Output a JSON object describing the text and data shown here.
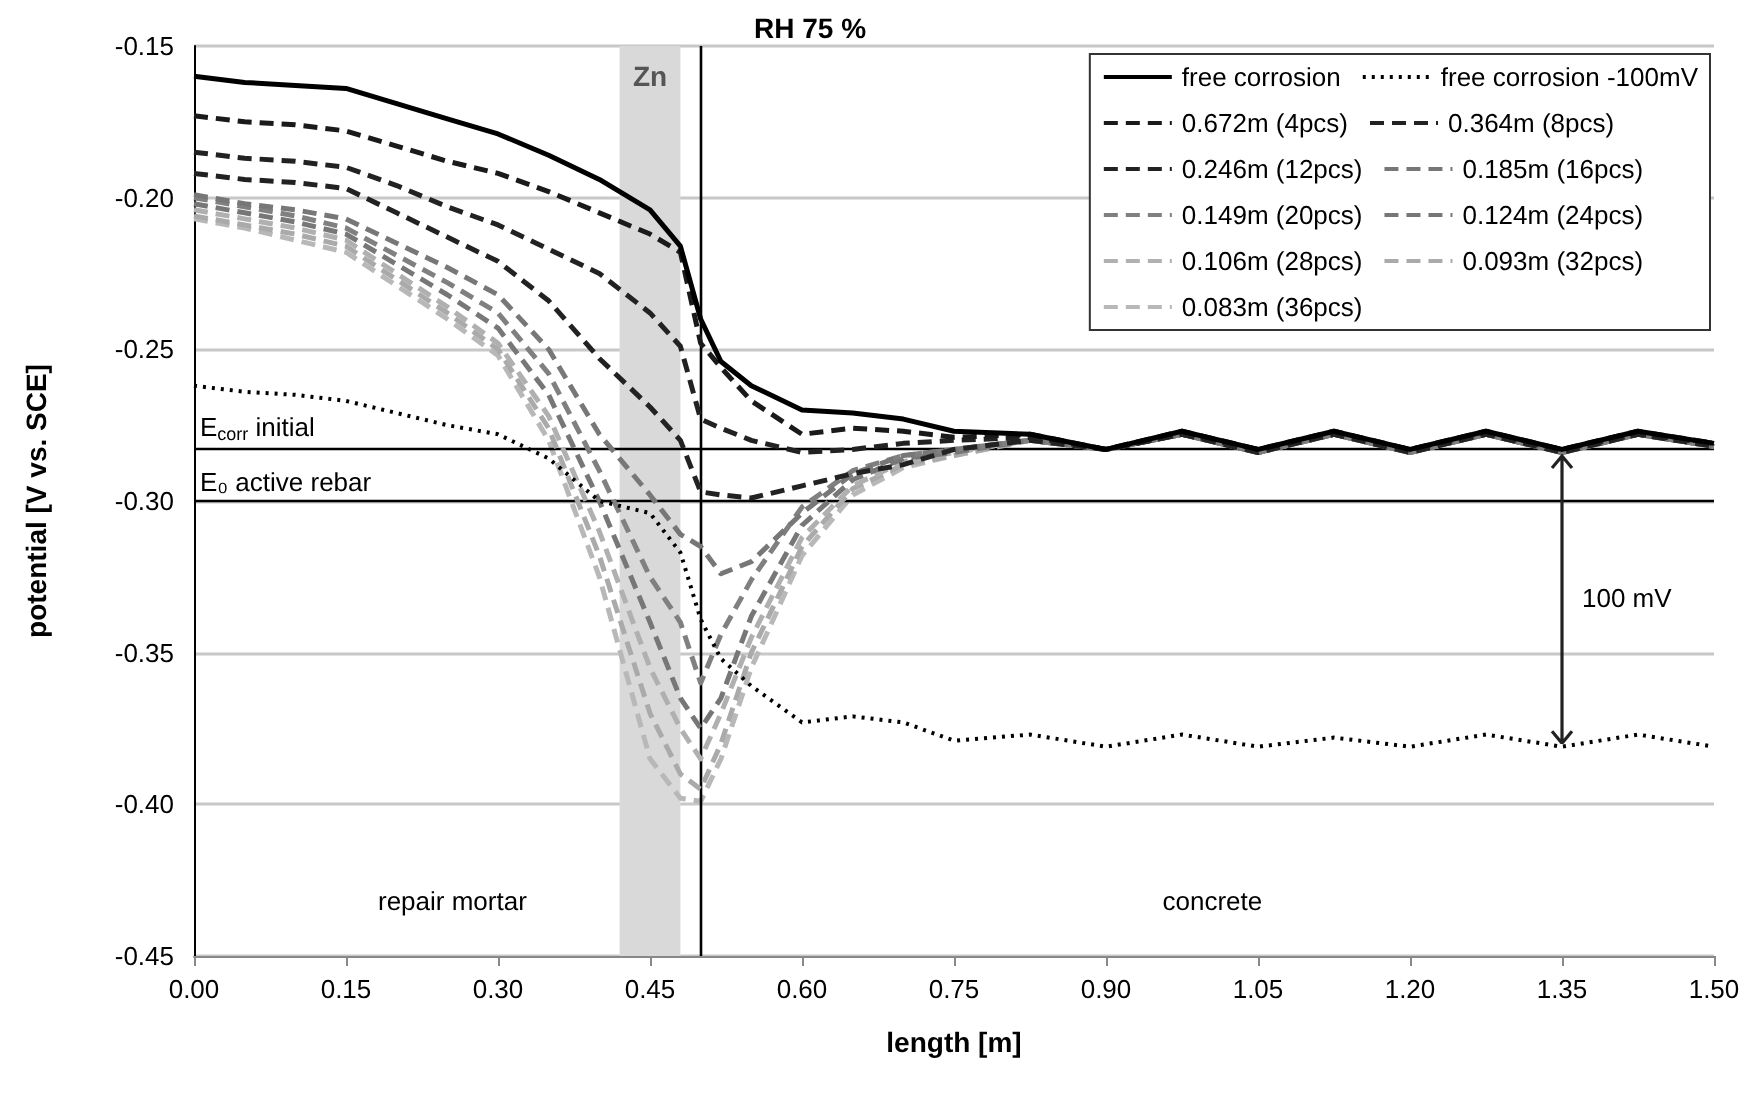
{
  "chart_data": {
    "type": "line",
    "title": "RH 75 %",
    "xlabel": "length [m]",
    "ylabel": "potential [V vs. SCE]",
    "x": [
      0,
      0.05,
      0.1,
      0.15,
      0.2,
      0.25,
      0.3,
      0.35,
      0.4,
      0.45,
      0.48,
      0.5,
      0.52,
      0.55,
      0.6,
      0.65,
      0.7,
      0.75,
      0.825,
      0.9,
      0.975,
      1.05,
      1.125,
      1.2,
      1.275,
      1.35,
      1.425,
      1.5
    ],
    "series": [
      {
        "name": "free corrosion",
        "color": "#000000",
        "line_style": "solid",
        "values": [
          -0.16,
          -0.162,
          -0.163,
          -0.164,
          -0.169,
          -0.174,
          -0.179,
          -0.186,
          -0.194,
          -0.204,
          -0.216,
          -0.24,
          -0.254,
          -0.262,
          -0.27,
          -0.271,
          -0.273,
          -0.277,
          -0.278,
          -0.283,
          -0.277,
          -0.283,
          -0.277,
          -0.283,
          -0.277,
          -0.283,
          -0.277,
          -0.281
        ]
      },
      {
        "name": "free corrosion -100mV",
        "color": "#000000",
        "line_style": "dotted",
        "values": [
          -0.262,
          -0.264,
          -0.265,
          -0.267,
          -0.271,
          -0.275,
          -0.278,
          -0.286,
          -0.3,
          -0.304,
          -0.317,
          -0.339,
          -0.352,
          -0.361,
          -0.373,
          -0.371,
          -0.373,
          -0.379,
          -0.377,
          -0.381,
          -0.377,
          -0.381,
          -0.378,
          -0.381,
          -0.377,
          -0.381,
          -0.377,
          -0.381
        ]
      },
      {
        "name": "0.672m (4pcs)",
        "color": "#1a1a1a",
        "line_style": "dashed",
        "values": [
          -0.173,
          -0.175,
          -0.176,
          -0.178,
          -0.183,
          -0.188,
          -0.192,
          -0.198,
          -0.205,
          -0.212,
          -0.218,
          -0.248,
          -0.256,
          -0.267,
          -0.278,
          -0.276,
          -0.277,
          -0.279,
          -0.278,
          -0.283,
          -0.277,
          -0.283,
          -0.277,
          -0.283,
          -0.277,
          -0.283,
          -0.277,
          -0.281
        ]
      },
      {
        "name": "0.364m (8pcs)",
        "color": "#222222",
        "line_style": "dashed",
        "values": [
          -0.185,
          -0.187,
          -0.188,
          -0.19,
          -0.196,
          -0.203,
          -0.209,
          -0.217,
          -0.225,
          -0.238,
          -0.249,
          -0.273,
          -0.276,
          -0.28,
          -0.284,
          -0.283,
          -0.281,
          -0.28,
          -0.279,
          -0.283,
          -0.278,
          -0.283,
          -0.278,
          -0.283,
          -0.278,
          -0.283,
          -0.278,
          -0.281
        ]
      },
      {
        "name": "0.246m (12pcs)",
        "color": "#222222",
        "line_style": "dashed",
        "values": [
          -0.192,
          -0.194,
          -0.195,
          -0.197,
          -0.205,
          -0.213,
          -0.221,
          -0.234,
          -0.253,
          -0.269,
          -0.28,
          -0.297,
          -0.298,
          -0.299,
          -0.295,
          -0.291,
          -0.288,
          -0.283,
          -0.28,
          -0.283,
          -0.278,
          -0.284,
          -0.278,
          -0.284,
          -0.278,
          -0.284,
          -0.278,
          -0.282
        ]
      },
      {
        "name": "0.185m (16pcs)",
        "color": "#777777",
        "line_style": "dashed",
        "values": [
          -0.199,
          -0.202,
          -0.204,
          -0.207,
          -0.215,
          -0.223,
          -0.232,
          -0.25,
          -0.278,
          -0.298,
          -0.311,
          -0.315,
          -0.324,
          -0.32,
          -0.304,
          -0.291,
          -0.285,
          -0.283,
          -0.28,
          -0.283,
          -0.278,
          -0.284,
          -0.278,
          -0.284,
          -0.278,
          -0.284,
          -0.278,
          -0.282
        ]
      },
      {
        "name": "0.149m (20pcs)",
        "color": "#808080",
        "line_style": "dashed",
        "values": [
          -0.2,
          -0.203,
          -0.206,
          -0.21,
          -0.219,
          -0.228,
          -0.238,
          -0.258,
          -0.29,
          -0.325,
          -0.34,
          -0.36,
          -0.344,
          -0.326,
          -0.302,
          -0.29,
          -0.285,
          -0.283,
          -0.28,
          -0.283,
          -0.278,
          -0.284,
          -0.278,
          -0.284,
          -0.278,
          -0.284,
          -0.278,
          -0.282
        ]
      },
      {
        "name": "0.124m (24pcs)",
        "color": "#777777",
        "line_style": "dashed",
        "values": [
          -0.202,
          -0.205,
          -0.208,
          -0.212,
          -0.222,
          -0.232,
          -0.243,
          -0.265,
          -0.3,
          -0.34,
          -0.365,
          -0.375,
          -0.365,
          -0.338,
          -0.308,
          -0.293,
          -0.286,
          -0.284,
          -0.28,
          -0.283,
          -0.278,
          -0.284,
          -0.278,
          -0.284,
          -0.278,
          -0.284,
          -0.278,
          -0.282
        ]
      },
      {
        "name": "0.106m (28pcs)",
        "color": "#b0b0b0",
        "line_style": "dashed",
        "values": [
          -0.204,
          -0.207,
          -0.21,
          -0.214,
          -0.225,
          -0.236,
          -0.248,
          -0.272,
          -0.31,
          -0.355,
          -0.375,
          -0.385,
          -0.37,
          -0.345,
          -0.312,
          -0.295,
          -0.287,
          -0.284,
          -0.28,
          -0.283,
          -0.278,
          -0.284,
          -0.278,
          -0.284,
          -0.278,
          -0.284,
          -0.278,
          -0.282
        ]
      },
      {
        "name": "0.093m (32pcs)",
        "color": "#aaaaaa",
        "line_style": "dashed",
        "values": [
          -0.206,
          -0.209,
          -0.212,
          -0.216,
          -0.227,
          -0.238,
          -0.25,
          -0.276,
          -0.318,
          -0.37,
          -0.39,
          -0.395,
          -0.38,
          -0.35,
          -0.315,
          -0.296,
          -0.288,
          -0.285,
          -0.28,
          -0.283,
          -0.278,
          -0.284,
          -0.278,
          -0.284,
          -0.278,
          -0.284,
          -0.278,
          -0.282
        ]
      },
      {
        "name": "0.083m (36pcs)",
        "color": "#b8b8b8",
        "line_style": "dashed",
        "values": [
          -0.207,
          -0.21,
          -0.214,
          -0.218,
          -0.229,
          -0.24,
          -0.252,
          -0.28,
          -0.325,
          -0.385,
          -0.398,
          -0.399,
          -0.385,
          -0.355,
          -0.318,
          -0.298,
          -0.289,
          -0.285,
          -0.28,
          -0.283,
          -0.278,
          -0.284,
          -0.278,
          -0.284,
          -0.278,
          -0.284,
          -0.278,
          -0.282
        ]
      }
    ],
    "xlim": [
      0,
      1.5
    ],
    "xticks": [
      {
        "value": 0,
        "label": "0.00"
      },
      {
        "value": 0.15,
        "label": "0.15"
      },
      {
        "value": 0.3,
        "label": "0.30"
      },
      {
        "value": 0.45,
        "label": "0.45"
      },
      {
        "value": 0.6,
        "label": "0.60"
      },
      {
        "value": 0.75,
        "label": "0.75"
      },
      {
        "value": 0.9,
        "label": "0.90"
      },
      {
        "value": 1.05,
        "label": "1.05"
      },
      {
        "value": 1.2,
        "label": "1.20"
      },
      {
        "value": 1.35,
        "label": "1.35"
      },
      {
        "value": 1.5,
        "label": "1.50"
      }
    ],
    "ylim": [
      -0.45,
      -0.15
    ],
    "yticks": [
      {
        "value": -0.45,
        "label": "-0.45"
      },
      {
        "value": -0.4,
        "label": "-0.40"
      },
      {
        "value": -0.35,
        "label": "-0.35"
      },
      {
        "value": -0.3,
        "label": "-0.30"
      },
      {
        "value": -0.25,
        "label": "-0.25"
      },
      {
        "value": -0.2,
        "label": "-0.20"
      },
      {
        "value": -0.15,
        "label": "-0.15"
      }
    ],
    "grid": "y",
    "legend": "top right",
    "marker": "none",
    "ref_lines": [
      {
        "axis": "y",
        "value": -0.283,
        "label": "E$_{corr}$ initial",
        "color": "#000000"
      },
      {
        "axis": "y",
        "value": -0.3,
        "label": "E₀ active rebar",
        "color": "#000000"
      },
      {
        "axis": "x",
        "value": 0.5,
        "color": "#000000"
      }
    ],
    "bands": [
      {
        "axis": "x",
        "from": 0.42,
        "to": 0.48,
        "label": "Zn",
        "color": "#d9d9d9"
      }
    ],
    "annotations": [
      "repair mortar",
      "concrete",
      "100 mV"
    ]
  }
}
